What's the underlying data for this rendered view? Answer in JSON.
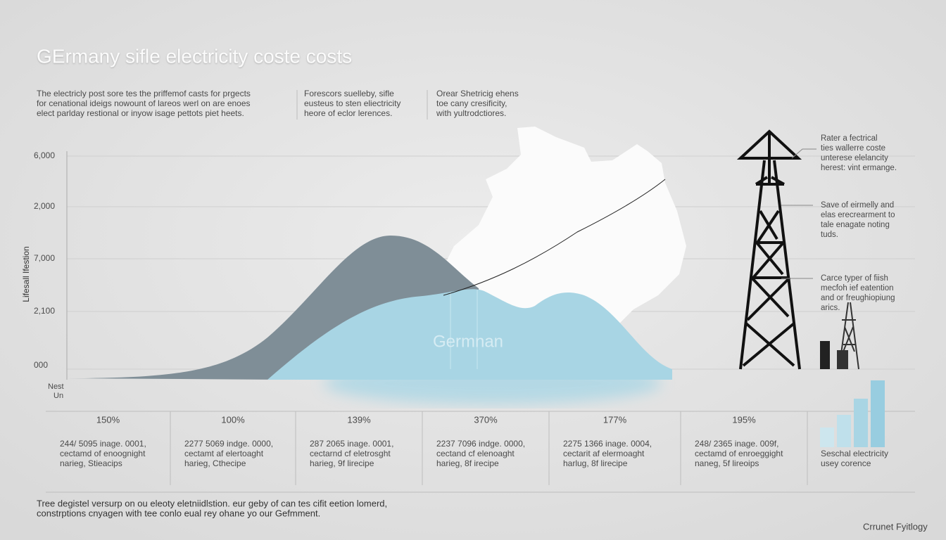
{
  "header": {
    "title": "GErmany sifle electricity coste costs",
    "intro": [
      [
        "The electricly post sore tes the priffemof casts for prgects",
        "for cenational ideigs nowount of lareos werl on are enoes",
        "elect parlday restional or inyow isage pettots piet heets."
      ],
      [
        "Forescors suelleby, sifle",
        "eusteus to sten eliectricity",
        "heore of eclor lerences."
      ],
      [
        "Orear Shetricig ehens",
        "toe cany cresificity,",
        "with yultrodctiores."
      ]
    ]
  },
  "chart": {
    "y_axis_title": "Lifesall Ifestion",
    "y_labels": [
      "6,000",
      "2,000",
      "7,000",
      "2,100",
      "000"
    ],
    "x_corner": [
      "Nest",
      "Un"
    ],
    "watermark": "Germnan",
    "annotations": [
      [
        "Rater a fectrical",
        "ties wallerre coste",
        "unterese elelancity",
        "herest: vint ermange."
      ],
      [
        "Save of eirmelly and",
        "elas erecrearment to",
        "tale enagate noting",
        "tuds."
      ],
      [
        "Carce typer of fiish",
        "mecfoh ief eatention",
        "and or freughiopiung",
        "arics."
      ]
    ]
  },
  "stats": [
    {
      "pct": "150%",
      "lines": [
        "244/ 5095 inage. 0001,",
        "cectamd of enoognight",
        "narieg, Stieacips"
      ]
    },
    {
      "pct": "100%",
      "lines": [
        "2277 5069 indge. 0000,",
        "cectamt af elertoaght",
        "harieg, Cthecipe"
      ]
    },
    {
      "pct": "139%",
      "lines": [
        "287 2065 inage. 0001,",
        "cectarnd cf eletrosght",
        "harieg, 9f lirecipe"
      ]
    },
    {
      "pct": "370%",
      "lines": [
        "2237 7096 indge. 0000,",
        "cectand cf elenoaght",
        "harieg, 8f irecipe"
      ]
    },
    {
      "pct": "177%",
      "lines": [
        "2275 1366 inage. 0004,",
        "cectarit af elermoaght",
        "harlug, 8f lirecipe"
      ]
    },
    {
      "pct": "195%",
      "lines": [
        "248/ 2365 inage. 009f,",
        "cectamd of enroeggight",
        "naneg, 5f lireoips"
      ]
    }
  ],
  "legend": [
    "Seschal electricity",
    "usey corence"
  ],
  "footer": {
    "lines": [
      "Tree degistel versurp on ou eleoty eletniidlstion. eur geby of can tes cifit eetion lomerd,",
      "constrptions cnyagen with tee conlo eual rey ohane yo our Gefmment."
    ],
    "credit": "Crrunet Fyitlogy"
  }
}
